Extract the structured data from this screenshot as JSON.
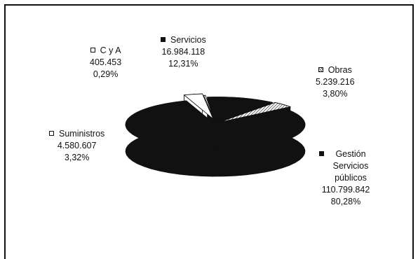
{
  "chart_data": {
    "type": "pie",
    "style": "3d-exploded",
    "title": "",
    "slices": [
      {
        "name": "C y A",
        "value_label": "405.453",
        "pct_label": "0,29%",
        "value": 405453,
        "pct": 0.29,
        "color": "#ffffff",
        "swatch": "white"
      },
      {
        "name": "Servicios",
        "value_label": "16.984.118",
        "pct_label": "12,31%",
        "value": 16984118,
        "pct": 12.31,
        "color": "#111111",
        "swatch": "black"
      },
      {
        "name": "Obras",
        "value_label": "5.239.216",
        "pct_label": "3,80%",
        "value": 5239216,
        "pct": 3.8,
        "color": "#bbbbbb",
        "swatch": "pattern"
      },
      {
        "name": "Gestión Servicios públicos",
        "value_label": "110.799.842",
        "pct_label": "80,28%",
        "value": 110799842,
        "pct": 80.28,
        "color": "#111111",
        "swatch": "black"
      },
      {
        "name": "Suministros",
        "value_label": "4.580.607",
        "pct_label": "3,32%",
        "value": 4580607,
        "pct": 3.32,
        "color": "#ffffff",
        "swatch": "white"
      }
    ]
  }
}
